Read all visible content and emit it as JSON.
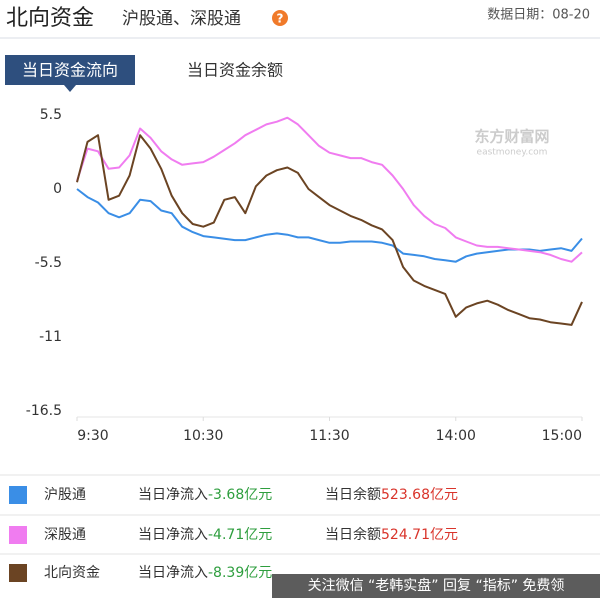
{
  "header": {
    "title": "北向资金",
    "subtitle": "沪股通、深股通",
    "date": "数据日期：08-20"
  },
  "tabs": [
    "当日资金流向",
    "当日资金余额"
  ],
  "chart_data": {
    "type": "line",
    "x": [
      0,
      5,
      10,
      15,
      20,
      25,
      30,
      35,
      40,
      45,
      50,
      55,
      60,
      65,
      70,
      75,
      80,
      85,
      90,
      95,
      100,
      105,
      110,
      115,
      120,
      125,
      130,
      135,
      140,
      145,
      150,
      155,
      160,
      165,
      170,
      175,
      180,
      185,
      190,
      195,
      200,
      205,
      210,
      215,
      220,
      225,
      230,
      235,
      240
    ],
    "xlim": [
      0,
      240
    ],
    "xticks": [
      {
        "value": 0,
        "label": "9:30"
      },
      {
        "value": 60,
        "label": "10:30"
      },
      {
        "value": 120,
        "label": "11:30"
      },
      {
        "value": 180,
        "label": "14:00"
      },
      {
        "value": 240,
        "label": "15:00"
      }
    ],
    "ylim": [
      -16.5,
      5.5
    ],
    "yticks": [
      5.5,
      0,
      -5.5,
      -11,
      -16.5
    ],
    "grid": false,
    "series": [
      {
        "name": "沪股通",
        "color": "#3a8ee6",
        "values": [
          0.0,
          -0.6,
          -1.0,
          -1.8,
          -2.1,
          -1.8,
          -0.8,
          -0.9,
          -1.6,
          -1.8,
          -2.8,
          -3.2,
          -3.5,
          -3.6,
          -3.7,
          -3.8,
          -3.8,
          -3.6,
          -3.4,
          -3.3,
          -3.4,
          -3.6,
          -3.6,
          -3.8,
          -4.0,
          -4.0,
          -3.9,
          -3.9,
          -3.9,
          -4.0,
          -4.2,
          -4.8,
          -4.9,
          -5.0,
          -5.2,
          -5.3,
          -5.4,
          -5.0,
          -4.8,
          -4.7,
          -4.6,
          -4.5,
          -4.5,
          -4.5,
          -4.6,
          -4.5,
          -4.4,
          -4.6,
          -3.68
        ]
      },
      {
        "name": "深股通",
        "color": "#f07cf0",
        "values": [
          0.6,
          3.0,
          2.8,
          1.5,
          1.6,
          2.5,
          4.5,
          3.8,
          2.8,
          2.2,
          1.8,
          1.9,
          2.0,
          2.4,
          2.9,
          3.4,
          4.0,
          4.4,
          4.8,
          5.0,
          5.3,
          4.8,
          4.0,
          3.2,
          2.7,
          2.5,
          2.3,
          2.3,
          2.0,
          1.8,
          1.0,
          0.0,
          -1.2,
          -2.0,
          -2.6,
          -2.9,
          -3.6,
          -3.9,
          -4.2,
          -4.3,
          -4.3,
          -4.4,
          -4.5,
          -4.6,
          -4.7,
          -4.9,
          -5.2,
          -5.4,
          -4.71
        ]
      },
      {
        "name": "北向资金",
        "color": "#6b4423",
        "values": [
          0.5,
          3.5,
          4.0,
          -0.8,
          -0.5,
          1.0,
          4.0,
          3.0,
          1.5,
          -0.5,
          -1.8,
          -2.6,
          -2.8,
          -2.5,
          -0.8,
          -0.6,
          -1.8,
          0.2,
          1.0,
          1.4,
          1.6,
          1.2,
          0.0,
          -0.6,
          -1.2,
          -1.6,
          -2.0,
          -2.3,
          -2.7,
          -3.0,
          -3.8,
          -5.8,
          -6.8,
          -7.2,
          -7.5,
          -7.8,
          -9.5,
          -8.8,
          -8.5,
          -8.3,
          -8.6,
          -9.0,
          -9.3,
          -9.6,
          -9.7,
          -9.9,
          -10.0,
          -10.1,
          -8.39
        ]
      }
    ]
  },
  "summary": {
    "inflow_label": "当日净流入",
    "balance_label": "当日余额",
    "rows": [
      {
        "net_inflow": "-3.68亿元",
        "balance": "523.68亿元"
      },
      {
        "net_inflow": "-4.71亿元",
        "balance": "524.71亿元"
      },
      {
        "net_inflow": "-8.39亿元"
      }
    ]
  },
  "watermarks": {
    "logo": "东方财富网",
    "logo_sub": "eastmoney.com",
    "footer": "关注微信 “老韩实盘” 回复 “指标” 免费领"
  }
}
